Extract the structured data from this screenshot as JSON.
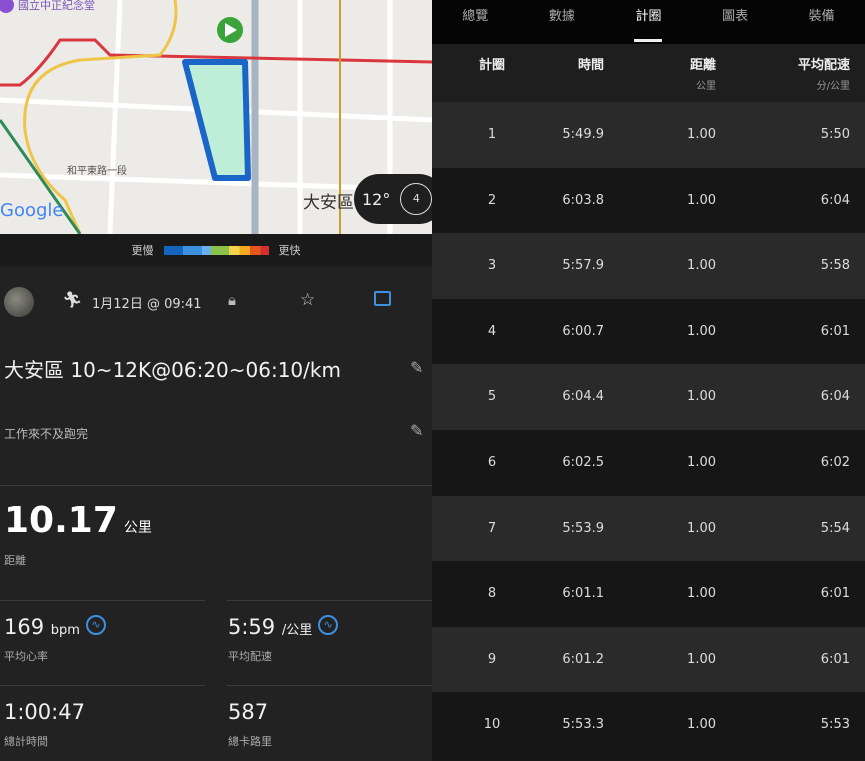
{
  "map": {
    "landmark": "國立中正紀念堂",
    "road": "和平東路一段",
    "district": "大安區",
    "temperature": "12°",
    "compass_value": "4",
    "attribution": "Google"
  },
  "legend": {
    "slow": "更慢",
    "fast": "更快"
  },
  "activity": {
    "datetime": "1月12日 @ 09:41",
    "title": "大安區 10~12K@06:20~06:10/km",
    "note": "工作來不及跑完",
    "distance": {
      "value": "10.17",
      "unit": "公里",
      "label": "距離"
    },
    "heart_rate": {
      "value": "169",
      "unit": "bpm",
      "label": "平均心率"
    },
    "pace": {
      "value": "5:59",
      "unit": "/公里",
      "label": "平均配速"
    },
    "time": {
      "value": "1:00:47",
      "label": "總計時間"
    },
    "calories": {
      "value": "587",
      "label": "總卡路里"
    }
  },
  "tabs": [
    "總覽",
    "數據",
    "計圈",
    "圖表",
    "裝備"
  ],
  "active_tab": "計圈",
  "table": {
    "headers": {
      "lap": "計圈",
      "time": "時間",
      "distance": "距離",
      "distance_unit": "公里",
      "pace": "平均配速",
      "pace_unit": "分/公里"
    },
    "rows": [
      {
        "lap": "1",
        "time": "5:49.9",
        "distance": "1.00",
        "pace": "5:50"
      },
      {
        "lap": "2",
        "time": "6:03.8",
        "distance": "1.00",
        "pace": "6:04"
      },
      {
        "lap": "3",
        "time": "5:57.9",
        "distance": "1.00",
        "pace": "5:58"
      },
      {
        "lap": "4",
        "time": "6:00.7",
        "distance": "1.00",
        "pace": "6:01"
      },
      {
        "lap": "5",
        "time": "6:04.4",
        "distance": "1.00",
        "pace": "6:04"
      },
      {
        "lap": "6",
        "time": "6:02.5",
        "distance": "1.00",
        "pace": "6:02"
      },
      {
        "lap": "7",
        "time": "5:53.9",
        "distance": "1.00",
        "pace": "5:54"
      },
      {
        "lap": "8",
        "time": "6:01.1",
        "distance": "1.00",
        "pace": "6:01"
      },
      {
        "lap": "9",
        "time": "6:01.2",
        "distance": "1.00",
        "pace": "6:01"
      },
      {
        "lap": "10",
        "time": "5:53.3",
        "distance": "1.00",
        "pace": "5:53"
      }
    ]
  }
}
